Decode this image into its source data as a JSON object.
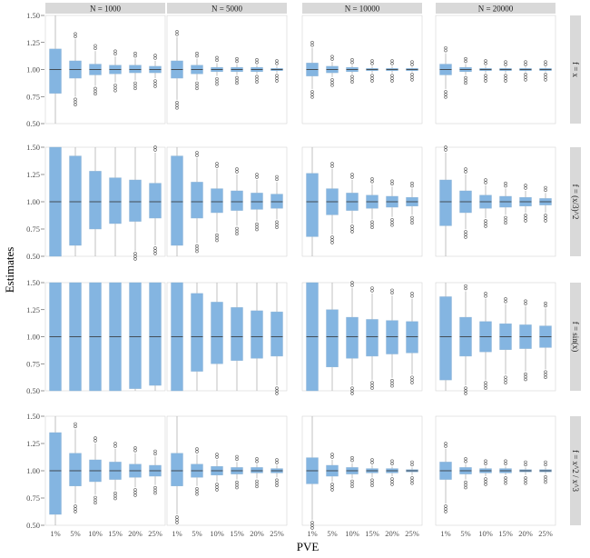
{
  "chart_data": {
    "type": "box",
    "xlabel": "PVE",
    "ylabel": "Estimates",
    "ylim": [
      0.5,
      1.5
    ],
    "yticks": [
      "0.50",
      "0.75",
      "1.00",
      "1.25",
      "1.50"
    ],
    "categories": [
      "1%",
      "5%",
      "10%",
      "15%",
      "20%",
      "25%"
    ],
    "columns": [
      "N = 1000",
      "N = 5000",
      "N = 10000",
      "N = 20000"
    ],
    "rows": [
      "f = x",
      "f = (x/3)^2",
      "f = sin(x)",
      "f = x^2 / x^3"
    ],
    "box_color": "#6fa8dc",
    "panels": [
      [
        {
          "q1": [
            0.78,
            0.92,
            0.95,
            0.96,
            0.97,
            0.97
          ],
          "q3": [
            1.19,
            1.08,
            1.05,
            1.04,
            1.04,
            1.03
          ],
          "lo": [
            0.5,
            0.75,
            0.85,
            0.88,
            0.9,
            0.92
          ],
          "hi": [
            1.5,
            1.28,
            1.17,
            1.12,
            1.1,
            1.08
          ]
        },
        {
          "q1": [
            0.92,
            0.96,
            0.98,
            0.98,
            0.98,
            0.99
          ],
          "q3": [
            1.08,
            1.04,
            1.02,
            1.02,
            1.02,
            1.01
          ],
          "lo": [
            0.72,
            0.9,
            0.94,
            0.95,
            0.96,
            0.97
          ],
          "hi": [
            1.3,
            1.1,
            1.06,
            1.05,
            1.04,
            1.03
          ]
        },
        {
          "q1": [
            0.94,
            0.97,
            0.98,
            0.99,
            0.99,
            0.99
          ],
          "q3": [
            1.06,
            1.03,
            1.02,
            1.01,
            1.01,
            1.01
          ],
          "lo": [
            0.82,
            0.93,
            0.96,
            0.97,
            0.97,
            0.98
          ],
          "hi": [
            1.2,
            1.07,
            1.04,
            1.03,
            1.03,
            1.02
          ]
        },
        {
          "q1": [
            0.95,
            0.98,
            0.99,
            0.99,
            0.99,
            0.99
          ],
          "q3": [
            1.05,
            1.02,
            1.01,
            1.01,
            1.01,
            1.01
          ],
          "lo": [
            0.82,
            0.95,
            0.97,
            0.97,
            0.98,
            0.98
          ],
          "hi": [
            1.15,
            1.05,
            1.03,
            1.02,
            1.02,
            1.02
          ]
        }
      ],
      [
        {
          "q1": [
            0.5,
            0.6,
            0.75,
            0.8,
            0.82,
            0.85
          ],
          "q3": [
            1.5,
            1.42,
            1.28,
            1.22,
            1.2,
            1.17
          ],
          "lo": [
            0.5,
            0.5,
            0.5,
            0.5,
            0.55,
            0.6
          ],
          "hi": [
            1.5,
            1.5,
            1.5,
            1.5,
            1.5,
            1.45
          ]
        },
        {
          "q1": [
            0.6,
            0.85,
            0.9,
            0.92,
            0.93,
            0.94
          ],
          "q3": [
            1.42,
            1.18,
            1.12,
            1.1,
            1.08,
            1.07
          ],
          "lo": [
            0.5,
            0.62,
            0.72,
            0.78,
            0.82,
            0.84
          ],
          "hi": [
            1.5,
            1.4,
            1.3,
            1.25,
            1.2,
            1.18
          ]
        },
        {
          "q1": [
            0.68,
            0.88,
            0.92,
            0.94,
            0.95,
            0.96
          ],
          "q3": [
            1.26,
            1.12,
            1.08,
            1.06,
            1.05,
            1.04
          ],
          "lo": [
            0.5,
            0.7,
            0.8,
            0.84,
            0.86,
            0.88
          ],
          "hi": [
            1.5,
            1.3,
            1.2,
            1.16,
            1.14,
            1.12
          ]
        },
        {
          "q1": [
            0.78,
            0.9,
            0.94,
            0.95,
            0.96,
            0.97
          ],
          "q3": [
            1.2,
            1.1,
            1.06,
            1.05,
            1.04,
            1.03
          ],
          "lo": [
            0.5,
            0.75,
            0.85,
            0.88,
            0.9,
            0.9
          ],
          "hi": [
            1.45,
            1.25,
            1.15,
            1.12,
            1.1,
            1.08
          ]
        }
      ],
      [
        {
          "q1": [
            0.5,
            0.5,
            0.5,
            0.5,
            0.52,
            0.55
          ],
          "q3": [
            1.5,
            1.5,
            1.5,
            1.5,
            1.5,
            1.5
          ],
          "lo": [
            0.5,
            0.5,
            0.5,
            0.5,
            0.5,
            0.5
          ],
          "hi": [
            1.5,
            1.5,
            1.5,
            1.5,
            1.5,
            1.5
          ]
        },
        {
          "q1": [
            0.5,
            0.68,
            0.75,
            0.78,
            0.8,
            0.82
          ],
          "q3": [
            1.5,
            1.4,
            1.32,
            1.27,
            1.24,
            1.23
          ],
          "lo": [
            0.5,
            0.5,
            0.5,
            0.5,
            0.5,
            0.55
          ],
          "hi": [
            1.5,
            1.5,
            1.5,
            1.5,
            1.5,
            1.5
          ]
        },
        {
          "q1": [
            0.5,
            0.72,
            0.8,
            0.82,
            0.84,
            0.85
          ],
          "q3": [
            1.5,
            1.25,
            1.18,
            1.16,
            1.15,
            1.14
          ],
          "lo": [
            0.5,
            0.5,
            0.55,
            0.6,
            0.62,
            0.65
          ],
          "hi": [
            1.5,
            1.5,
            1.45,
            1.4,
            1.38,
            1.35
          ]
        },
        {
          "q1": [
            0.6,
            0.82,
            0.86,
            0.88,
            0.89,
            0.9
          ],
          "q3": [
            1.37,
            1.18,
            1.14,
            1.12,
            1.11,
            1.1
          ],
          "lo": [
            0.5,
            0.55,
            0.6,
            0.65,
            0.68,
            0.7
          ],
          "hi": [
            1.5,
            1.42,
            1.35,
            1.3,
            1.28,
            1.26
          ]
        }
      ],
      [
        {
          "q1": [
            0.6,
            0.86,
            0.9,
            0.92,
            0.94,
            0.95
          ],
          "q3": [
            1.35,
            1.16,
            1.1,
            1.08,
            1.06,
            1.05
          ],
          "lo": [
            0.5,
            0.7,
            0.78,
            0.82,
            0.85,
            0.87
          ],
          "hi": [
            1.5,
            1.38,
            1.25,
            1.2,
            1.16,
            1.13
          ]
        },
        {
          "q1": [
            0.86,
            0.94,
            0.96,
            0.97,
            0.98,
            0.98
          ],
          "q3": [
            1.16,
            1.06,
            1.04,
            1.03,
            1.03,
            1.02
          ],
          "lo": [
            0.6,
            0.86,
            0.9,
            0.92,
            0.93,
            0.94
          ],
          "hi": [
            1.5,
            1.15,
            1.1,
            1.08,
            1.06,
            1.05
          ]
        },
        {
          "q1": [
            0.88,
            0.95,
            0.97,
            0.98,
            0.98,
            0.99
          ],
          "q3": [
            1.12,
            1.05,
            1.03,
            1.02,
            1.02,
            1.01
          ],
          "lo": [
            0.55,
            0.9,
            0.93,
            0.94,
            0.95,
            0.96
          ],
          "hi": [
            1.5,
            1.1,
            1.07,
            1.05,
            1.04,
            1.03
          ]
        },
        {
          "q1": [
            0.92,
            0.97,
            0.98,
            0.98,
            0.99,
            0.99
          ],
          "q3": [
            1.08,
            1.03,
            1.02,
            1.02,
            1.01,
            1.01
          ],
          "lo": [
            0.7,
            0.92,
            0.95,
            0.96,
            0.96,
            0.97
          ],
          "hi": [
            1.2,
            1.06,
            1.04,
            1.04,
            1.03,
            1.03
          ]
        }
      ]
    ],
    "median": 1.0
  }
}
